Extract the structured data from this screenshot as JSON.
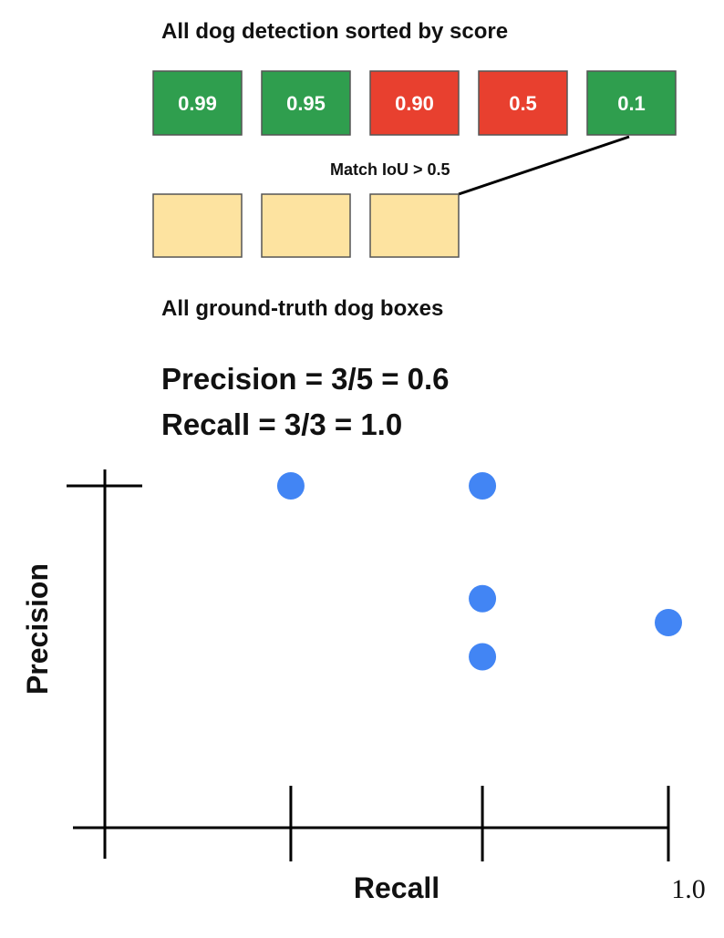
{
  "detections": {
    "title": "All dog detection sorted by score",
    "boxes": [
      {
        "label": "0.99",
        "color": "#2f9e4e"
      },
      {
        "label": "0.95",
        "color": "#2f9e4e"
      },
      {
        "label": "0.90",
        "color": "#e8402f"
      },
      {
        "label": "0.5",
        "color": "#e8402f"
      },
      {
        "label": "0.1",
        "color": "#2f9e4e"
      }
    ]
  },
  "match_label": "Match IoU  > 0.5",
  "ground_truth": {
    "title": "All ground-truth dog boxes"
  },
  "metrics": [
    "Precision = 3/5 = 0.6",
    "Recall = 3/3 = 1.0"
  ],
  "chart_data": {
    "type": "scatter",
    "x_label": "Recall",
    "y_label": "Precision",
    "x": [
      0.33,
      0.67,
      0.67,
      0.67,
      1.0
    ],
    "values": [
      1.0,
      1.0,
      0.67,
      0.5,
      0.6
    ],
    "color": "#4285f4",
    "xlim": [
      0,
      1
    ],
    "ylim": [
      0,
      1
    ],
    "xticks": [
      0.33,
      0.67,
      {
        "value": 1,
        "label": "1.0"
      }
    ],
    "yticks": [
      1
    ]
  }
}
